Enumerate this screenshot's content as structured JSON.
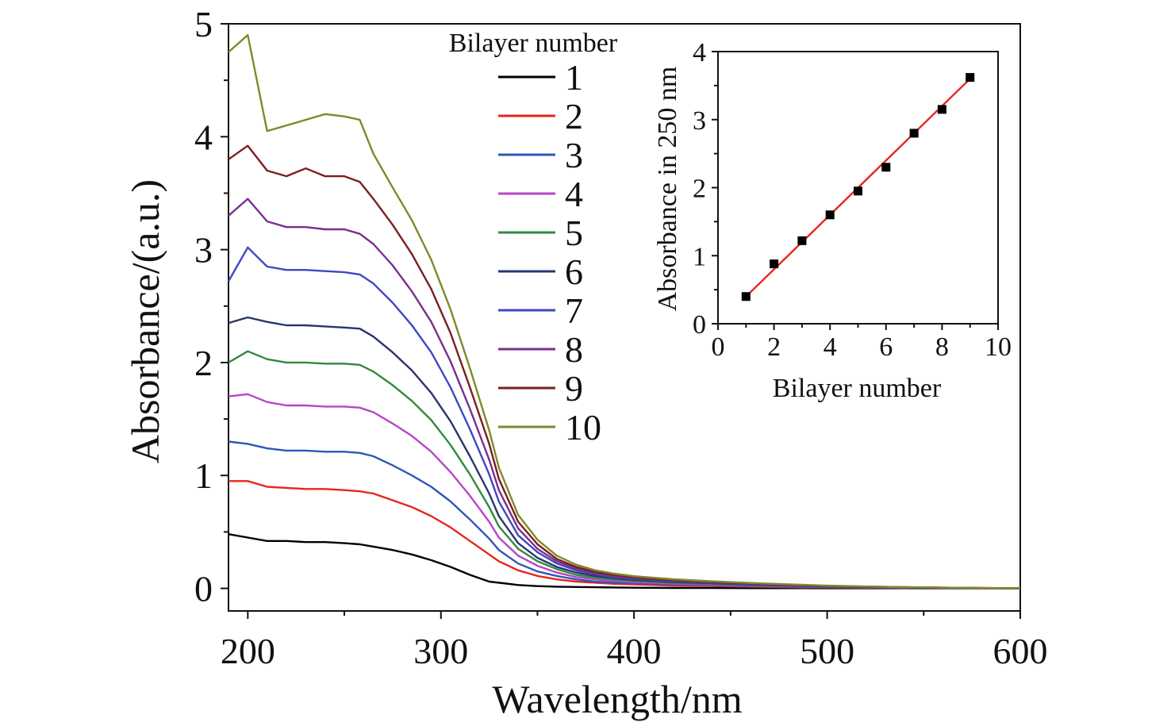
{
  "chart_data": [
    {
      "type": "line",
      "xlabel": "Wavelength/nm",
      "ylabel": "Absorbance/(a.u.)",
      "xlim": [
        190,
        600
      ],
      "ylim": [
        -0.2,
        5
      ],
      "x_ticks": [
        200,
        300,
        400,
        500,
        600
      ],
      "y_ticks": [
        0,
        1,
        2,
        3,
        4,
        5
      ],
      "legend_title": "Bilayer number",
      "legend_placement": "top-center",
      "grid": false,
      "x": [
        190,
        200,
        210,
        220,
        230,
        240,
        250,
        258,
        265,
        275,
        285,
        295,
        305,
        315,
        325,
        330,
        340,
        350,
        360,
        370,
        380,
        390,
        400,
        420,
        440,
        460,
        480,
        500,
        525,
        550,
        575,
        600
      ],
      "series": [
        {
          "name": "1",
          "color": "#000000",
          "values": [
            0.48,
            0.45,
            0.42,
            0.42,
            0.41,
            0.41,
            0.4,
            0.39,
            0.37,
            0.34,
            0.3,
            0.25,
            0.19,
            0.12,
            0.06,
            0.05,
            0.03,
            0.02,
            0.015,
            0.012,
            0.01,
            0.008,
            0.006,
            0.004,
            0.003,
            0.002,
            0.002,
            0.001,
            0.001,
            0.0,
            0.0,
            0.0
          ]
        },
        {
          "name": "2",
          "color": "#e8251c",
          "values": [
            0.95,
            0.95,
            0.9,
            0.89,
            0.88,
            0.88,
            0.87,
            0.86,
            0.84,
            0.78,
            0.72,
            0.64,
            0.54,
            0.42,
            0.3,
            0.24,
            0.16,
            0.11,
            0.08,
            0.06,
            0.05,
            0.04,
            0.035,
            0.025,
            0.02,
            0.015,
            0.01,
            0.008,
            0.005,
            0.003,
            0.002,
            0.0
          ]
        },
        {
          "name": "3",
          "color": "#2f57b8",
          "values": [
            1.3,
            1.28,
            1.24,
            1.22,
            1.22,
            1.21,
            1.21,
            1.2,
            1.17,
            1.09,
            1.0,
            0.9,
            0.77,
            0.61,
            0.44,
            0.34,
            0.22,
            0.15,
            0.11,
            0.08,
            0.06,
            0.05,
            0.045,
            0.035,
            0.028,
            0.02,
            0.015,
            0.01,
            0.007,
            0.004,
            0.002,
            0.0
          ]
        },
        {
          "name": "4",
          "color": "#b845c8",
          "values": [
            1.7,
            1.72,
            1.65,
            1.62,
            1.62,
            1.61,
            1.61,
            1.6,
            1.56,
            1.46,
            1.35,
            1.21,
            1.03,
            0.82,
            0.59,
            0.45,
            0.29,
            0.2,
            0.14,
            0.1,
            0.08,
            0.065,
            0.055,
            0.042,
            0.033,
            0.025,
            0.018,
            0.012,
            0.008,
            0.005,
            0.002,
            0.0
          ]
        },
        {
          "name": "5",
          "color": "#2e8b3e",
          "values": [
            2.0,
            2.1,
            2.03,
            2.0,
            2.0,
            1.99,
            1.99,
            1.98,
            1.92,
            1.8,
            1.66,
            1.49,
            1.27,
            1.01,
            0.72,
            0.55,
            0.35,
            0.24,
            0.17,
            0.12,
            0.095,
            0.078,
            0.066,
            0.05,
            0.04,
            0.03,
            0.022,
            0.015,
            0.01,
            0.006,
            0.003,
            0.0
          ]
        },
        {
          "name": "6",
          "color": "#2a3470",
          "values": [
            2.35,
            2.4,
            2.36,
            2.33,
            2.33,
            2.32,
            2.31,
            2.3,
            2.23,
            2.09,
            1.93,
            1.73,
            1.48,
            1.17,
            0.84,
            0.64,
            0.4,
            0.27,
            0.19,
            0.14,
            0.11,
            0.09,
            0.075,
            0.057,
            0.045,
            0.034,
            0.025,
            0.017,
            0.011,
            0.007,
            0.003,
            0.0
          ]
        },
        {
          "name": "7",
          "color": "#3f47c4",
          "values": [
            2.72,
            3.02,
            2.85,
            2.82,
            2.82,
            2.81,
            2.8,
            2.78,
            2.7,
            2.53,
            2.33,
            2.09,
            1.78,
            1.41,
            1.01,
            0.77,
            0.47,
            0.32,
            0.22,
            0.16,
            0.125,
            0.1,
            0.085,
            0.064,
            0.05,
            0.038,
            0.028,
            0.019,
            0.012,
            0.007,
            0.003,
            0.0
          ]
        },
        {
          "name": "8",
          "color": "#7a2f8e",
          "values": [
            3.3,
            3.45,
            3.25,
            3.2,
            3.2,
            3.18,
            3.18,
            3.14,
            3.05,
            2.86,
            2.63,
            2.36,
            2.01,
            1.59,
            1.14,
            0.87,
            0.53,
            0.35,
            0.24,
            0.175,
            0.135,
            0.11,
            0.092,
            0.07,
            0.055,
            0.042,
            0.031,
            0.021,
            0.013,
            0.008,
            0.004,
            0.0
          ]
        },
        {
          "name": "9",
          "color": "#7a1f1f",
          "values": [
            3.8,
            3.92,
            3.7,
            3.65,
            3.72,
            3.65,
            3.65,
            3.6,
            3.45,
            3.22,
            2.96,
            2.65,
            2.26,
            1.78,
            1.28,
            0.97,
            0.59,
            0.39,
            0.26,
            0.19,
            0.145,
            0.118,
            0.098,
            0.074,
            0.058,
            0.045,
            0.033,
            0.022,
            0.014,
            0.009,
            0.004,
            0.0
          ]
        },
        {
          "name": "10",
          "color": "#7f8a2a",
          "values": [
            4.75,
            4.9,
            4.05,
            4.1,
            4.15,
            4.2,
            4.18,
            4.15,
            3.85,
            3.55,
            3.26,
            2.91,
            2.47,
            1.95,
            1.4,
            1.07,
            0.65,
            0.43,
            0.29,
            0.21,
            0.16,
            0.13,
            0.108,
            0.081,
            0.063,
            0.048,
            0.036,
            0.024,
            0.015,
            0.009,
            0.004,
            0.0
          ]
        }
      ]
    },
    {
      "type": "scatter",
      "xlabel": "Bilayer number",
      "ylabel": "Absorbance in 250 nm",
      "xlim": [
        0,
        10
      ],
      "ylim": [
        0,
        4
      ],
      "x_ticks": [
        0,
        2,
        4,
        6,
        8,
        10
      ],
      "y_ticks": [
        0,
        1,
        2,
        3,
        4
      ],
      "grid": false,
      "x": [
        1,
        2,
        3,
        4,
        5,
        6,
        7,
        8,
        9
      ],
      "series": [
        {
          "values": [
            0.4,
            0.88,
            1.22,
            1.6,
            1.95,
            2.3,
            2.8,
            3.15,
            3.62
          ],
          "color": "#000000"
        }
      ],
      "fit_line": {
        "x": [
          1,
          9
        ],
        "y": [
          0.4,
          3.6
        ],
        "color": "#e8251c"
      }
    }
  ]
}
